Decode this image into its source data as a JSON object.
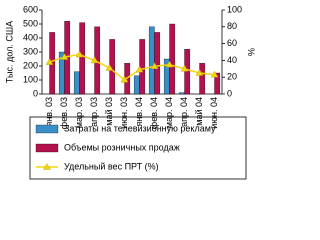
{
  "chart_data": {
    "type": "bar-line",
    "y_label": "Тыс. дол. США",
    "y2_label": "%",
    "categories": [
      "янв. 03",
      "фев. 03",
      "мар. 03",
      "апр. 03",
      "май 03",
      "июн. 03",
      "янв. 04",
      "фев. 04",
      "мар. 04",
      "апр. 04",
      "май 04",
      "июн. 04"
    ],
    "series": [
      {
        "name": "Затраты на телевизионную рекламу",
        "type": "bar",
        "color": "#3a8fc7",
        "values": [
          0,
          300,
          160,
          0,
          0,
          0,
          130,
          480,
          250,
          10,
          0,
          0
        ]
      },
      {
        "name": "Объемы розничных продаж",
        "type": "bar",
        "color": "#b3124e",
        "values": [
          440,
          520,
          510,
          480,
          390,
          220,
          390,
          440,
          500,
          320,
          220,
          150
        ]
      },
      {
        "name": "Удельный вес ПРТ (%)",
        "type": "line",
        "axis": "y2",
        "color": "#f2d60f",
        "values": [
          38,
          44,
          47,
          40,
          31,
          17,
          29,
          33,
          35,
          30,
          25,
          23
        ]
      }
    ],
    "ylim": [
      0,
      600
    ],
    "yticks": [
      0,
      100,
      200,
      300,
      400,
      500,
      600
    ],
    "y2lim": [
      0,
      100
    ],
    "y2ticks": [
      0,
      20,
      40,
      60,
      80,
      100
    ],
    "legend": "bottom"
  }
}
